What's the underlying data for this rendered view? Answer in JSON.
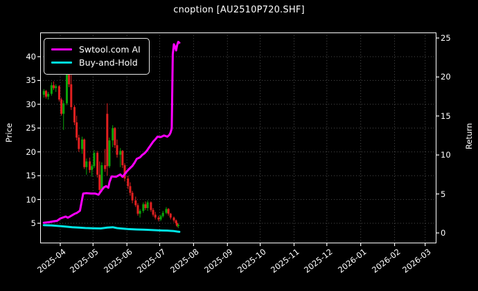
{
  "chart_data": {
    "type": "candlestick+line",
    "title": "cnoption [AU2510P720.SHF]",
    "legend_position": "upper-left",
    "background": "#000000",
    "colors": {
      "text": "#ffffff",
      "grid": "#4d4d4d",
      "spine": "#ffffff",
      "candle_up": "#0aa50a",
      "candle_down": "#e22020"
    },
    "left_axis": {
      "label": "Price",
      "ticks": [
        5,
        10,
        15,
        20,
        25,
        30,
        35,
        40
      ],
      "range": [
        0.8,
        45.1
      ]
    },
    "right_axis": {
      "label": "Return",
      "ticks": [
        0,
        5,
        10,
        15,
        20,
        25
      ],
      "range": [
        -1.3,
        25.7
      ]
    },
    "x_axis": {
      "tick_labels": [
        "2025-04",
        "2025-05",
        "2025-06",
        "2025-07",
        "2025-08",
        "2025-09",
        "2025-10",
        "2025-11",
        "2025-12",
        "2026-01",
        "2026-02",
        "2026-03"
      ],
      "range": [
        "2025-03-13",
        "2026-03-26"
      ]
    },
    "candles_axis": "price",
    "candles": [
      [
        "2025-03-17",
        32.0,
        33.2,
        31.4,
        32.8
      ],
      [
        "2025-03-19",
        32.8,
        33.0,
        31.2,
        31.6
      ],
      [
        "2025-03-21",
        31.6,
        32.6,
        31.0,
        32.2
      ],
      [
        "2025-03-24",
        32.2,
        34.6,
        31.8,
        34.0
      ],
      [
        "2025-03-26",
        34.0,
        34.8,
        33.0,
        33.4
      ],
      [
        "2025-03-28",
        33.4,
        34.2,
        32.6,
        33.8
      ],
      [
        "2025-03-31",
        33.8,
        34.0,
        30.6,
        31.0
      ],
      [
        "2025-04-02",
        31.0,
        31.4,
        27.6,
        28.0
      ],
      [
        "2025-04-04",
        28.0,
        30.8,
        24.6,
        30.2
      ],
      [
        "2025-04-07",
        30.2,
        39.4,
        29.8,
        38.8
      ],
      [
        "2025-04-09",
        38.8,
        39.0,
        33.6,
        34.2
      ],
      [
        "2025-04-11",
        34.2,
        36.2,
        28.8,
        29.4
      ],
      [
        "2025-04-14",
        29.4,
        29.8,
        25.6,
        26.2
      ],
      [
        "2025-04-16",
        26.2,
        27.6,
        22.4,
        23.0
      ],
      [
        "2025-04-18",
        23.0,
        23.6,
        20.0,
        20.6
      ],
      [
        "2025-04-21",
        20.6,
        23.2,
        19.6,
        22.6
      ],
      [
        "2025-04-23",
        22.6,
        22.8,
        16.4,
        16.8
      ],
      [
        "2025-04-25",
        16.8,
        18.6,
        15.2,
        18.0
      ],
      [
        "2025-04-28",
        18.0,
        18.8,
        15.6,
        16.2
      ],
      [
        "2025-04-30",
        16.2,
        17.4,
        14.8,
        17.0
      ],
      [
        "2025-05-02",
        17.0,
        20.4,
        16.6,
        19.8
      ],
      [
        "2025-05-05",
        19.8,
        20.2,
        14.6,
        15.2
      ],
      [
        "2025-05-07",
        15.2,
        18.0,
        11.2,
        12.0
      ],
      [
        "2025-05-09",
        12.0,
        17.8,
        11.6,
        17.2
      ],
      [
        "2025-05-12",
        17.2,
        20.6,
        15.8,
        16.4
      ],
      [
        "2025-05-14",
        28.0,
        30.2,
        15.0,
        17.0
      ],
      [
        "2025-05-16",
        17.0,
        23.0,
        16.6,
        22.4
      ],
      [
        "2025-05-19",
        22.4,
        25.6,
        21.0,
        25.0
      ],
      [
        "2025-05-21",
        25.0,
        25.2,
        20.8,
        21.4
      ],
      [
        "2025-05-23",
        21.4,
        22.6,
        18.8,
        19.4
      ],
      [
        "2025-05-26",
        19.4,
        20.8,
        16.8,
        20.2
      ],
      [
        "2025-05-28",
        20.2,
        20.4,
        16.6,
        17.2
      ],
      [
        "2025-05-30",
        17.2,
        17.6,
        13.8,
        14.4
      ],
      [
        "2025-06-02",
        14.4,
        15.0,
        12.2,
        12.8
      ],
      [
        "2025-06-04",
        12.8,
        13.6,
        10.8,
        11.4
      ],
      [
        "2025-06-06",
        11.4,
        11.8,
        9.2,
        9.8
      ],
      [
        "2025-06-09",
        9.8,
        10.6,
        8.4,
        8.8
      ],
      [
        "2025-06-11",
        8.8,
        9.2,
        6.6,
        7.0
      ],
      [
        "2025-06-13",
        7.0,
        8.0,
        6.2,
        7.6
      ],
      [
        "2025-06-16",
        7.6,
        9.4,
        7.2,
        9.0
      ],
      [
        "2025-06-18",
        9.0,
        9.6,
        7.8,
        8.2
      ],
      [
        "2025-06-20",
        8.2,
        9.8,
        7.6,
        9.4
      ],
      [
        "2025-06-23",
        9.4,
        9.6,
        7.4,
        7.8
      ],
      [
        "2025-06-25",
        7.8,
        8.2,
        6.4,
        6.8
      ],
      [
        "2025-06-27",
        6.8,
        7.4,
        5.8,
        6.2
      ],
      [
        "2025-06-30",
        6.2,
        6.6,
        5.4,
        5.8
      ],
      [
        "2025-07-02",
        5.8,
        6.8,
        5.5,
        6.5
      ],
      [
        "2025-07-04",
        6.5,
        7.6,
        6.2,
        7.2
      ],
      [
        "2025-07-07",
        7.2,
        8.4,
        6.9,
        8.0
      ],
      [
        "2025-07-09",
        8.0,
        8.2,
        6.6,
        7.0
      ],
      [
        "2025-07-11",
        7.0,
        7.2,
        5.8,
        6.2
      ],
      [
        "2025-07-14",
        6.2,
        6.4,
        5.2,
        5.6
      ],
      [
        "2025-07-16",
        5.6,
        5.8,
        4.6,
        5.0
      ],
      [
        "2025-07-17",
        5.0,
        5.2,
        4.2,
        4.4
      ],
      [
        "2025-07-18",
        4.4,
        4.9,
        4.0,
        4.7
      ]
    ],
    "series": [
      {
        "name": "Swtool.com AI",
        "color": "#ff00ff",
        "axis": "return",
        "line_width": 3,
        "points": [
          [
            "2025-03-17",
            1.3
          ],
          [
            "2025-03-22",
            1.38
          ],
          [
            "2025-03-26",
            1.5
          ],
          [
            "2025-03-29",
            1.55
          ],
          [
            "2025-04-01",
            1.85
          ],
          [
            "2025-04-04",
            2.0
          ],
          [
            "2025-04-06",
            2.1
          ],
          [
            "2025-04-08",
            1.95
          ],
          [
            "2025-04-11",
            2.2
          ],
          [
            "2025-04-14",
            2.45
          ],
          [
            "2025-04-16",
            2.55
          ],
          [
            "2025-04-19",
            2.85
          ],
          [
            "2025-04-22",
            5.05
          ],
          [
            "2025-04-25",
            5.1
          ],
          [
            "2025-04-29",
            5.05
          ],
          [
            "2025-05-03",
            5.05
          ],
          [
            "2025-05-06",
            4.9
          ],
          [
            "2025-05-09",
            5.5
          ],
          [
            "2025-05-11",
            5.85
          ],
          [
            "2025-05-13",
            6.0
          ],
          [
            "2025-05-15",
            5.8
          ],
          [
            "2025-05-16",
            6.5
          ],
          [
            "2025-05-18",
            7.25
          ],
          [
            "2025-05-22",
            7.2
          ],
          [
            "2025-05-26",
            7.5
          ],
          [
            "2025-05-28",
            7.2
          ],
          [
            "2025-06-01",
            7.9
          ],
          [
            "2025-06-03",
            8.2
          ],
          [
            "2025-06-06",
            8.6
          ],
          [
            "2025-06-08",
            9.0
          ],
          [
            "2025-06-10",
            9.5
          ],
          [
            "2025-06-13",
            9.7
          ],
          [
            "2025-06-15",
            10.0
          ],
          [
            "2025-06-17",
            10.2
          ],
          [
            "2025-06-19",
            10.5
          ],
          [
            "2025-06-21",
            10.9
          ],
          [
            "2025-06-23",
            11.3
          ],
          [
            "2025-06-25",
            11.7
          ],
          [
            "2025-06-27",
            12.0
          ],
          [
            "2025-06-29",
            12.35
          ],
          [
            "2025-07-02",
            12.3
          ],
          [
            "2025-07-05",
            12.5
          ],
          [
            "2025-07-08",
            12.35
          ],
          [
            "2025-07-10",
            12.6
          ],
          [
            "2025-07-11",
            12.9
          ],
          [
            "2025-07-12",
            13.4
          ],
          [
            "2025-07-13",
            22.9
          ],
          [
            "2025-07-14",
            24.2
          ],
          [
            "2025-07-15",
            23.9
          ],
          [
            "2025-07-16",
            23.4
          ],
          [
            "2025-07-17",
            24.1
          ],
          [
            "2025-07-18",
            24.5
          ],
          [
            "2025-07-19",
            24.4
          ]
        ]
      },
      {
        "name": "Buy-and-Hold",
        "color": "#00e5e5",
        "axis": "return",
        "line_width": 3,
        "points": [
          [
            "2025-03-17",
            1.0
          ],
          [
            "2025-03-24",
            0.97
          ],
          [
            "2025-03-28",
            0.92
          ],
          [
            "2025-04-02",
            0.86
          ],
          [
            "2025-04-07",
            0.8
          ],
          [
            "2025-04-12",
            0.74
          ],
          [
            "2025-04-18",
            0.68
          ],
          [
            "2025-04-24",
            0.63
          ],
          [
            "2025-05-01",
            0.6
          ],
          [
            "2025-05-08",
            0.58
          ],
          [
            "2025-05-14",
            0.68
          ],
          [
            "2025-05-19",
            0.74
          ],
          [
            "2025-05-23",
            0.62
          ],
          [
            "2025-05-28",
            0.56
          ],
          [
            "2025-06-02",
            0.5
          ],
          [
            "2025-06-10",
            0.44
          ],
          [
            "2025-06-16",
            0.42
          ],
          [
            "2025-06-20",
            0.4
          ],
          [
            "2025-06-25",
            0.36
          ],
          [
            "2025-06-30",
            0.33
          ],
          [
            "2025-07-04",
            0.31
          ],
          [
            "2025-07-08",
            0.3
          ],
          [
            "2025-07-11",
            0.27
          ],
          [
            "2025-07-14",
            0.24
          ],
          [
            "2025-07-17",
            0.18
          ],
          [
            "2025-07-19",
            0.14
          ]
        ]
      }
    ]
  }
}
